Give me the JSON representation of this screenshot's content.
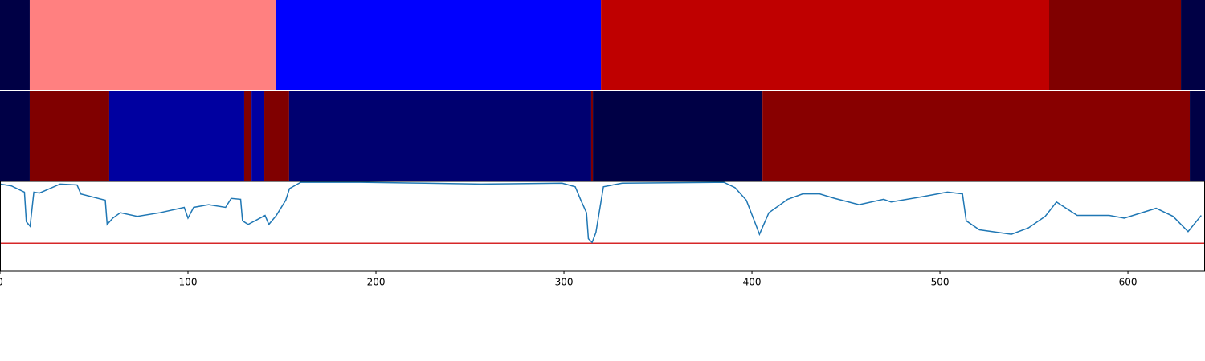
{
  "chart_data": [
    {
      "type": "segments",
      "xlim": [
        0,
        641
      ],
      "segments": [
        {
          "start": 0,
          "end": 15.8,
          "color": "#000045"
        },
        {
          "start": 15.8,
          "end": 146.6,
          "color": "#ff8080"
        },
        {
          "start": 146.6,
          "end": 319.7,
          "color": "#0000ff"
        },
        {
          "start": 319.7,
          "end": 558.1,
          "color": "#bf0000"
        },
        {
          "start": 558.1,
          "end": 628.2,
          "color": "#800000"
        },
        {
          "start": 628.2,
          "end": 641,
          "color": "#000045"
        }
      ]
    },
    {
      "type": "segments",
      "xlim": [
        0,
        641
      ],
      "segments": [
        {
          "start": 0,
          "end": 15.8,
          "color": "#000046"
        },
        {
          "start": 15.8,
          "end": 58.1,
          "color": "#800000"
        },
        {
          "start": 58.1,
          "end": 129.9,
          "color": "#0000a0"
        },
        {
          "start": 129.9,
          "end": 133.8,
          "color": "#800000"
        },
        {
          "start": 133.8,
          "end": 140.6,
          "color": "#0000a0"
        },
        {
          "start": 140.6,
          "end": 153.8,
          "color": "#800000"
        },
        {
          "start": 153.8,
          "end": 314.5,
          "color": "#000070"
        },
        {
          "start": 314.5,
          "end": 315.4,
          "color": "#800000"
        },
        {
          "start": 315.4,
          "end": 405.6,
          "color": "#000045"
        },
        {
          "start": 405.6,
          "end": 632.9,
          "color": "#880000"
        },
        {
          "start": 632.9,
          "end": 641,
          "color": "#000045"
        }
      ]
    },
    {
      "type": "line",
      "xlim": [
        0,
        641
      ],
      "ylim": [
        0,
        1
      ],
      "xticks": [
        0,
        100,
        200,
        300,
        400,
        500,
        600
      ],
      "color": "#1f77b4",
      "hline": 0.31,
      "hline_color": "#d62728",
      "x": [
        0,
        6,
        13,
        14,
        16,
        18,
        21,
        32,
        41,
        43,
        56,
        57,
        60,
        64,
        73,
        85,
        98,
        100,
        103,
        111,
        120,
        123,
        128,
        129,
        132,
        141,
        143,
        147,
        152,
        154,
        160,
        192,
        226,
        256,
        299,
        306,
        309,
        312,
        313,
        315,
        317,
        321,
        331,
        385,
        391,
        397,
        402,
        404,
        409,
        419,
        427,
        436,
        444,
        457,
        470,
        474,
        491,
        504,
        512,
        514,
        521,
        538,
        547,
        556,
        562,
        573,
        590,
        598,
        615,
        624,
        632,
        639
      ],
      "values": [
        0.97,
        0.95,
        0.88,
        0.55,
        0.5,
        0.88,
        0.87,
        0.97,
        0.96,
        0.86,
        0.79,
        0.52,
        0.59,
        0.65,
        0.61,
        0.65,
        0.71,
        0.59,
        0.71,
        0.74,
        0.71,
        0.81,
        0.8,
        0.56,
        0.52,
        0.62,
        0.52,
        0.62,
        0.79,
        0.92,
        0.99,
        0.99,
        0.98,
        0.97,
        0.98,
        0.94,
        0.79,
        0.65,
        0.36,
        0.32,
        0.43,
        0.94,
        0.98,
        0.99,
        0.93,
        0.79,
        0.52,
        0.41,
        0.65,
        0.8,
        0.86,
        0.86,
        0.81,
        0.74,
        0.8,
        0.77,
        0.83,
        0.88,
        0.86,
        0.56,
        0.46,
        0.41,
        0.48,
        0.61,
        0.77,
        0.62,
        0.62,
        0.59,
        0.7,
        0.61,
        0.44,
        0.62
      ]
    }
  ]
}
